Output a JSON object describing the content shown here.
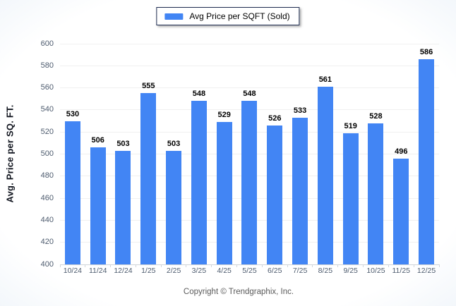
{
  "chart_data": {
    "type": "bar",
    "legend": "Avg Price per SQFT (Sold)",
    "categories": [
      "10/24",
      "11/24",
      "12/24",
      "1/25",
      "2/25",
      "3/25",
      "4/25",
      "5/25",
      "6/25",
      "7/25",
      "8/25",
      "9/25",
      "10/25",
      "11/25",
      "12/25"
    ],
    "values": [
      530,
      506,
      503,
      555,
      503,
      548,
      529,
      548,
      526,
      533,
      561,
      519,
      528,
      496,
      586
    ],
    "ylabel": "Avg. Price per SQ. FT.",
    "ylim": [
      400,
      600
    ],
    "y_ticks": [
      400,
      420,
      440,
      460,
      480,
      500,
      520,
      540,
      560,
      580,
      600
    ],
    "grid": "horizontal",
    "legend_position": "top-center",
    "bar_color": "#4285f4",
    "footer": "Copyright © Trendgraphix, Inc."
  }
}
